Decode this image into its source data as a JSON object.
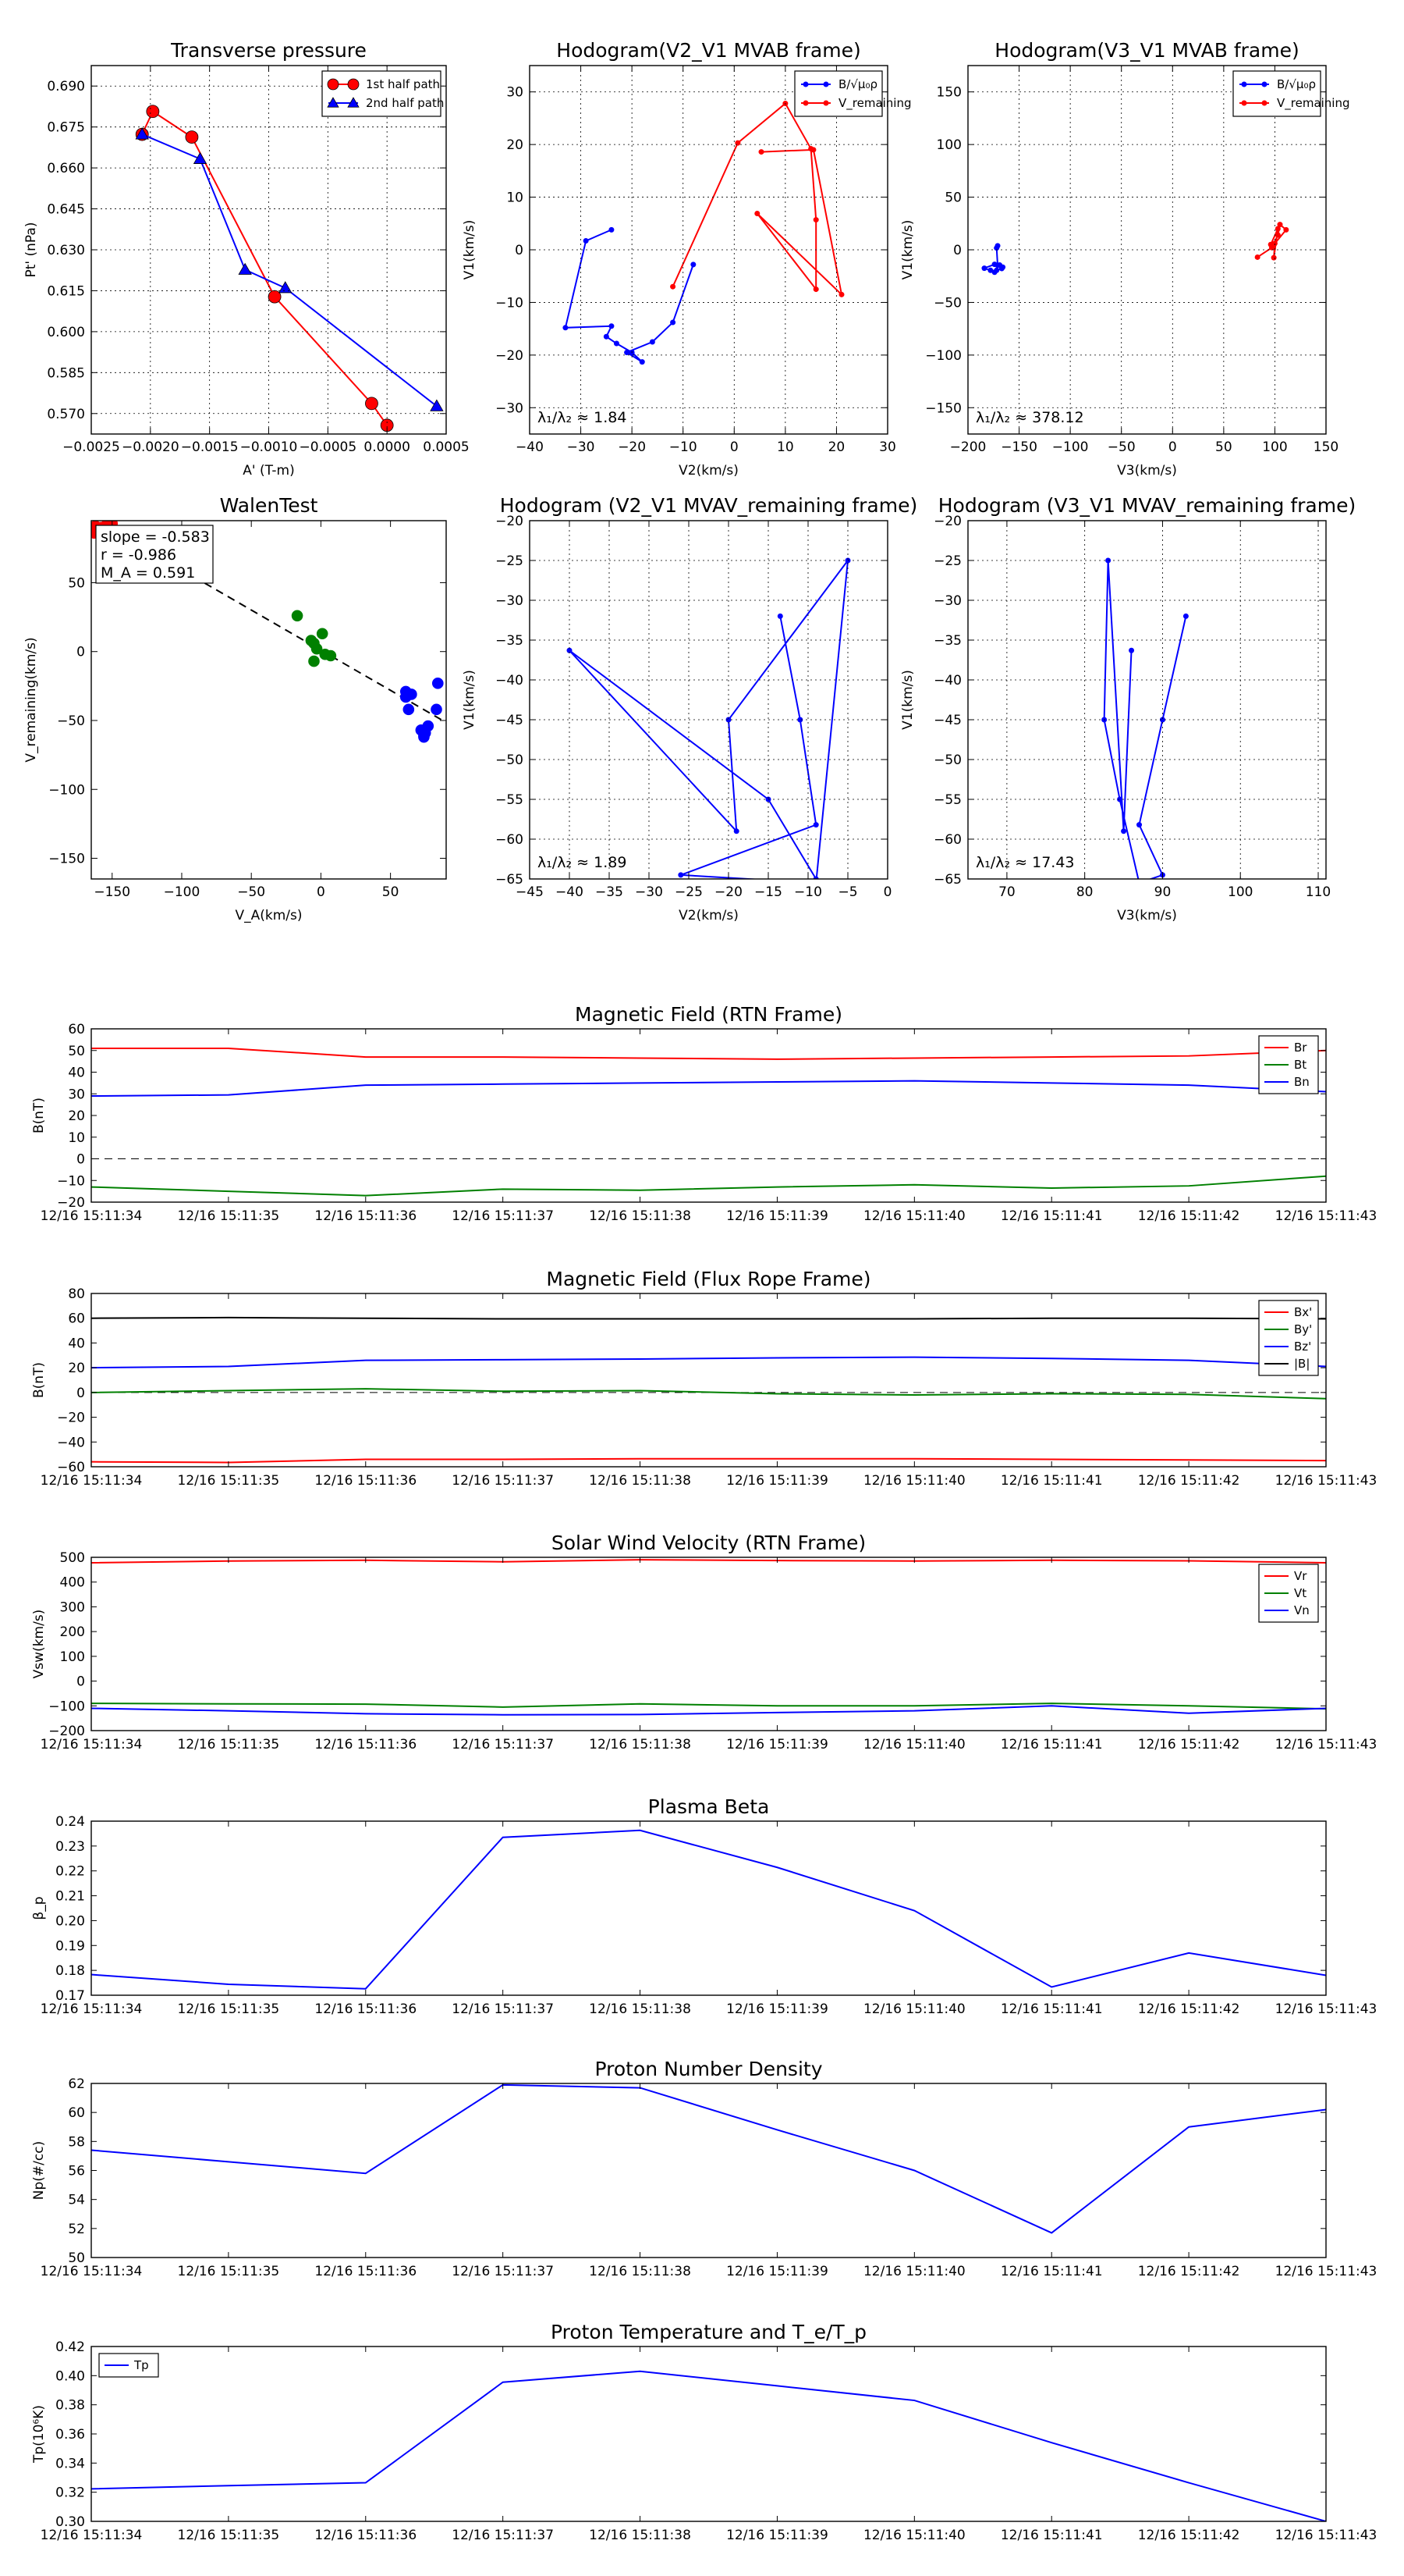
{
  "chart_data": [
    {
      "id": "transverse",
      "type": "line",
      "title": "Transverse pressure",
      "xlabel": "A' (T-m)",
      "ylabel": "Pt' (nPa)",
      "xlim": [
        -0.0025,
        0.0005
      ],
      "ylim": [
        0.5625,
        0.6975
      ],
      "xticks": [
        -0.0025,
        -0.002,
        -0.0015,
        -0.001,
        -0.0005,
        0.0,
        0.0005
      ],
      "yticks": [
        0.57,
        0.585,
        0.6,
        0.615,
        0.63,
        0.645,
        0.66,
        0.675,
        0.69
      ],
      "grid": true,
      "legend": "top-right",
      "series": [
        {
          "name": "1st half path",
          "color": "#ff0000",
          "marker": "circle",
          "x": [
            0.0,
            -0.00013,
            -0.00095,
            -0.00165,
            -0.00198,
            -0.00207
          ],
          "y": [
            0.5657,
            0.5737,
            0.6128,
            0.6713,
            0.6807,
            0.6723
          ]
        },
        {
          "name": "2nd half path",
          "color": "#0000ff",
          "marker": "triangle",
          "x": [
            -0.00207,
            -0.00158,
            -0.0012,
            -0.00086,
            0.00042
          ],
          "y": [
            0.6723,
            0.6633,
            0.6227,
            0.616,
            0.5727
          ]
        }
      ]
    },
    {
      "id": "hodo_v2v1",
      "type": "line",
      "title": "Hodogram(V2_V1 MVAB frame)",
      "xlabel": "V2(km/s)",
      "ylabel": "V1(km/s)",
      "xlim": [
        -40,
        30
      ],
      "ylim": [
        -35,
        35
      ],
      "xticks": [
        -40,
        -30,
        -20,
        -10,
        0,
        10,
        20,
        30
      ],
      "yticks": [
        -30,
        -20,
        -10,
        0,
        10,
        20,
        30
      ],
      "grid": true,
      "legend": "top-right",
      "annotation": "λ₁/λ₂ ≈ 1.84",
      "series": [
        {
          "name": "B/√μ₀ρ",
          "color": "#0000ff",
          "x": [
            -24,
            -29,
            -33,
            -24,
            -25,
            -23,
            -20,
            -18,
            -21,
            -16,
            -12,
            -8
          ],
          "y": [
            3.8,
            1.7,
            -14.8,
            -14.5,
            -16.5,
            -17.8,
            -19.5,
            -21.3,
            -19.5,
            -17.5,
            -13.8,
            -2.8
          ]
        },
        {
          "name": "V_remaining",
          "color": "#ff0000",
          "x": [
            -12,
            0.7,
            10,
            15,
            16,
            16,
            4.5,
            21,
            15.5,
            5.3
          ],
          "y": [
            -7,
            20.3,
            27.8,
            19.2,
            5.7,
            -7.5,
            6.9,
            -8.5,
            19.0,
            18.6
          ]
        }
      ]
    },
    {
      "id": "hodo_v3v1",
      "type": "line",
      "title": "Hodogram(V3_V1 MVAB frame)",
      "xlabel": "V3(km/s)",
      "ylabel": "V1(km/s)",
      "xlim": [
        -200,
        150
      ],
      "ylim": [
        -175,
        175
      ],
      "xticks": [
        -200,
        -150,
        -100,
        -50,
        0,
        50,
        100,
        150
      ],
      "yticks": [
        -150,
        -100,
        -50,
        0,
        50,
        100,
        150
      ],
      "grid": true,
      "legend": "top-right",
      "annotation": "λ₁/λ₂ ≈ 378.12",
      "series": [
        {
          "name": "B/√μ₀ρ",
          "color": "#0000ff",
          "x": [
            -171,
            -172,
            -171,
            -169,
            -166,
            -167,
            -172,
            -174,
            -178,
            -184,
            -174
          ],
          "y": [
            3.8,
            1.7,
            -14.8,
            -14.5,
            -16.5,
            -17.8,
            -19.5,
            -21.3,
            -19.5,
            -17.5,
            -13.8
          ]
        },
        {
          "name": "V_remaining",
          "color": "#ff0000",
          "x": [
            83,
            97,
            103,
            105,
            111,
            100,
            99,
            103,
            96
          ],
          "y": [
            -7,
            2,
            14,
            24,
            19,
            6,
            -7.5,
            20,
            5
          ]
        }
      ]
    },
    {
      "id": "walen",
      "type": "scatter",
      "title": "WalenTest",
      "xlabel": "V_A(km/s)",
      "ylabel": "V_remaining(km/s)",
      "xlim": [
        -165,
        90
      ],
      "ylim": [
        -165,
        95
      ],
      "xticks": [
        -150,
        -100,
        -50,
        0,
        50
      ],
      "yticks": [
        -150,
        -100,
        -50,
        0,
        50
      ],
      "grid": false,
      "legend_box": [
        "slope = -0.583",
        "r = -0.986",
        "M_A = 0.591"
      ],
      "fit": {
        "slope": -0.583,
        "intercept": 1.0,
        "x_from": -100,
        "x_to": 90
      },
      "series": [
        {
          "name": "",
          "color": "#ff0000",
          "x": [
            -162,
            -158,
            -154,
            -150,
            -163
          ],
          "y": [
            91,
            90,
            92,
            93,
            86
          ]
        },
        {
          "name": "",
          "color": "#008000",
          "x": [
            -17,
            -7,
            -5,
            -3,
            1,
            3,
            7,
            -5
          ],
          "y": [
            26,
            8,
            6,
            2,
            13,
            -2,
            -3,
            -7
          ]
        },
        {
          "name": "",
          "color": "#0000ff",
          "x": [
            61,
            63,
            65,
            72,
            74,
            75,
            77,
            83,
            84,
            61,
            74
          ],
          "y": [
            -29,
            -42,
            -31,
            -57,
            -61,
            -59,
            -54,
            -42,
            -23,
            -33,
            -62
          ]
        }
      ]
    },
    {
      "id": "hodo_v2v1_rem",
      "type": "line",
      "title": "Hodogram (V2_V1 MVAV_remaining frame)",
      "xlabel": "V2(km/s)",
      "ylabel": "V1(km/s)",
      "xlim": [
        -45,
        0
      ],
      "ylim": [
        -65,
        -20
      ],
      "xticks": [
        -45,
        -40,
        -35,
        -30,
        -25,
        -20,
        -15,
        -10,
        -5,
        0
      ],
      "yticks": [
        -65,
        -60,
        -55,
        -50,
        -45,
        -40,
        -35,
        -30,
        -25,
        -20
      ],
      "grid": true,
      "annotation": "λ₁/λ₂ ≈ 1.89",
      "series": [
        {
          "name": "",
          "color": "#0000ff",
          "x": [
            -13.5,
            -11,
            -9,
            -26,
            -9,
            -5,
            -20,
            -19,
            -40,
            -15,
            -9
          ],
          "y": [
            -32,
            -45,
            -58.2,
            -64.5,
            -65.5,
            -25,
            -45,
            -59,
            -36.3,
            -55,
            -65
          ]
        }
      ]
    },
    {
      "id": "hodo_v3v1_rem",
      "type": "line",
      "title": "Hodogram (V3_V1 MVAV_remaining frame)",
      "xlabel": "V3(km/s)",
      "ylabel": "V1(km/s)",
      "xlim": [
        65,
        111
      ],
      "ylim": [
        -65,
        -20
      ],
      "xticks": [
        70,
        80,
        90,
        100,
        110
      ],
      "yticks": [
        -65,
        -60,
        -55,
        -50,
        -45,
        -40,
        -35,
        -30,
        -25,
        -20
      ],
      "grid": true,
      "annotation": "λ₁/λ₂ ≈ 17.43",
      "series": [
        {
          "name": "",
          "color": "#0000ff",
          "x": [
            93,
            90,
            87,
            90,
            87,
            84.5,
            82.5,
            83,
            85,
            86
          ],
          "y": [
            -32,
            -45,
            -58.2,
            -64.5,
            -65.5,
            -55,
            -45,
            -25,
            -59,
            -36.3
          ]
        }
      ]
    },
    {
      "id": "mag_rtn",
      "type": "line",
      "title": "Magnetic Field (RTN Frame)",
      "ylabel": "B(nT)",
      "categories": [
        "12/16 15:11:34",
        "12/16 15:11:35",
        "12/16 15:11:36",
        "12/16 15:11:37",
        "12/16 15:11:38",
        "12/16 15:11:39",
        "12/16 15:11:40",
        "12/16 15:11:41",
        "12/16 15:11:42",
        "12/16 15:11:43"
      ],
      "ylim": [
        -20,
        60
      ],
      "yticks": [
        -20,
        -10,
        0,
        10,
        20,
        30,
        40,
        50,
        60
      ],
      "zero_line": true,
      "legend": "top-right",
      "series": [
        {
          "name": "Br",
          "color": "#ff0000",
          "values": [
            51,
            51,
            47,
            47,
            46.5,
            46,
            46.5,
            47,
            47.5,
            50
          ]
        },
        {
          "name": "Bt",
          "color": "#008000",
          "values": [
            -13,
            -15,
            -17,
            -14,
            -14.5,
            -13,
            -12,
            -13.5,
            -12.5,
            -8
          ]
        },
        {
          "name": "Bn",
          "color": "#0000ff",
          "values": [
            29,
            29.5,
            34,
            34.5,
            35,
            35.5,
            36,
            35,
            34,
            31
          ]
        }
      ]
    },
    {
      "id": "mag_fr",
      "type": "line",
      "title": "Magnetic Field (Flux Rope Frame)",
      "ylabel": "B(nT)",
      "categories": [
        "12/16 15:11:34",
        "12/16 15:11:35",
        "12/16 15:11:36",
        "12/16 15:11:37",
        "12/16 15:11:38",
        "12/16 15:11:39",
        "12/16 15:11:40",
        "12/16 15:11:41",
        "12/16 15:11:42",
        "12/16 15:11:43"
      ],
      "ylim": [
        -60,
        80
      ],
      "yticks": [
        -60,
        -40,
        -20,
        0,
        20,
        40,
        60,
        80
      ],
      "zero_line": true,
      "legend": "top-right",
      "series": [
        {
          "name": "Bx'",
          "color": "#ff0000",
          "values": [
            -56,
            -56.5,
            -54,
            -54,
            -53.5,
            -53.5,
            -53.5,
            -54,
            -54.5,
            -55
          ]
        },
        {
          "name": "By'",
          "color": "#008000",
          "values": [
            0,
            1.5,
            3,
            1,
            1.5,
            -1,
            -2,
            -1,
            -1.5,
            -5
          ]
        },
        {
          "name": "Bz'",
          "color": "#0000ff",
          "values": [
            20,
            21,
            26,
            26.5,
            27,
            28,
            28.5,
            27.5,
            26,
            21
          ]
        },
        {
          "name": "|B|",
          "color": "#000000",
          "values": [
            60,
            60.5,
            60,
            59.5,
            59.5,
            59.5,
            59.5,
            60,
            60,
            59.5
          ]
        }
      ]
    },
    {
      "id": "sw_vel",
      "type": "line",
      "title": "Solar Wind Velocity (RTN Frame)",
      "ylabel": "Vsw(km/s)",
      "categories": [
        "12/16 15:11:34",
        "12/16 15:11:35",
        "12/16 15:11:36",
        "12/16 15:11:37",
        "12/16 15:11:38",
        "12/16 15:11:39",
        "12/16 15:11:40",
        "12/16 15:11:41",
        "12/16 15:11:42",
        "12/16 15:11:43"
      ],
      "ylim": [
        -200,
        500
      ],
      "yticks": [
        -200,
        -100,
        0,
        100,
        200,
        300,
        400,
        500
      ],
      "legend": "top-right",
      "series": [
        {
          "name": "Vr",
          "color": "#ff0000",
          "values": [
            478,
            485,
            488,
            482,
            490,
            487,
            485,
            488,
            486,
            478
          ]
        },
        {
          "name": "Vt",
          "color": "#008000",
          "values": [
            -90,
            -92,
            -93,
            -105,
            -92,
            -100,
            -100,
            -90,
            -100,
            -112
          ]
        },
        {
          "name": "Vn",
          "color": "#0000ff",
          "values": [
            -110,
            -120,
            -132,
            -136,
            -135,
            -127,
            -120,
            -100,
            -130,
            -110
          ]
        }
      ]
    },
    {
      "id": "beta",
      "type": "line",
      "title": "Plasma Beta",
      "ylabel": "β_p",
      "categories": [
        "12/16 15:11:34",
        "12/16 15:11:35",
        "12/16 15:11:36",
        "12/16 15:11:37",
        "12/16 15:11:38",
        "12/16 15:11:39",
        "12/16 15:11:40",
        "12/16 15:11:41",
        "12/16 15:11:42",
        "12/16 15:11:43"
      ],
      "ylim": [
        0.17,
        0.24
      ],
      "yticks": [
        0.17,
        0.18,
        0.19,
        0.2,
        0.21,
        0.22,
        0.23,
        0.24
      ],
      "series": [
        {
          "name": "",
          "color": "#0000ff",
          "values": [
            0.1783,
            0.1744,
            0.1726,
            0.2335,
            0.2363,
            0.2214,
            0.204,
            0.1733,
            0.187,
            0.178
          ]
        }
      ]
    },
    {
      "id": "density",
      "type": "line",
      "title": "Proton Number Density",
      "ylabel": "Np(#/cc)",
      "categories": [
        "12/16 15:11:34",
        "12/16 15:11:35",
        "12/16 15:11:36",
        "12/16 15:11:37",
        "12/16 15:11:38",
        "12/16 15:11:39",
        "12/16 15:11:40",
        "12/16 15:11:41",
        "12/16 15:11:42",
        "12/16 15:11:43"
      ],
      "ylim": [
        50,
        62
      ],
      "yticks": [
        50,
        52,
        54,
        56,
        58,
        60,
        62
      ],
      "series": [
        {
          "name": "",
          "color": "#0000ff",
          "values": [
            57.4,
            56.6,
            55.8,
            61.9,
            61.7,
            58.8,
            56.0,
            51.7,
            59.0,
            60.2
          ]
        }
      ]
    },
    {
      "id": "temp",
      "type": "line",
      "title": "Proton Temperature and T_e/T_p",
      "ylabel": "Tp(10⁶K)",
      "categories": [
        "12/16 15:11:34",
        "12/16 15:11:35",
        "12/16 15:11:36",
        "12/16 15:11:37",
        "12/16 15:11:38",
        "12/16 15:11:39",
        "12/16 15:11:40",
        "12/16 15:11:41",
        "12/16 15:11:42",
        "12/16 15:11:43"
      ],
      "ylim": [
        0.3,
        0.42
      ],
      "yticks": [
        0.3,
        0.32,
        0.34,
        0.36,
        0.38,
        0.4,
        0.42
      ],
      "legend": "top-left",
      "series": [
        {
          "name": "Tp",
          "color": "#0000ff",
          "values": [
            0.3223,
            0.3245,
            0.3265,
            0.3955,
            0.403,
            0.393,
            0.383,
            0.354,
            0.3265,
            0.3
          ]
        }
      ]
    }
  ]
}
